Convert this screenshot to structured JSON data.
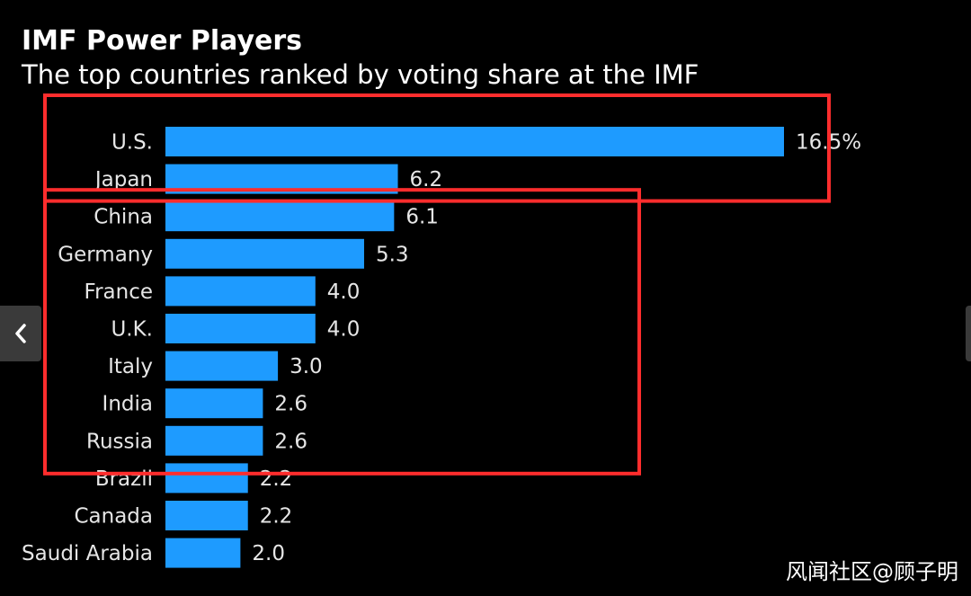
{
  "chart_data": {
    "type": "bar",
    "orientation": "horizontal",
    "title": "IMF Power Players",
    "subtitle": "The top countries ranked by voting share at the IMF",
    "categories": [
      "U.S.",
      "Japan",
      "China",
      "Germany",
      "France",
      "U.K.",
      "Italy",
      "India",
      "Russia",
      "Brazil",
      "Canada",
      "Saudi Arabia"
    ],
    "values": [
      16.5,
      6.2,
      6.1,
      5.3,
      4.0,
      4.0,
      3.0,
      2.6,
      2.6,
      2.2,
      2.2,
      2.0
    ],
    "value_labels": [
      "16.5%",
      "6.2",
      "6.1",
      "5.3",
      "4.0",
      "4.0",
      "3.0",
      "2.6",
      "2.6",
      "2.2",
      "2.2",
      "2.0"
    ],
    "xlim": [
      0,
      16.5
    ],
    "bar_color": "#1e9bff",
    "highlight_groups": [
      {
        "categories": [
          "U.S.",
          "Japan"
        ],
        "color": "#ff2d2d"
      },
      {
        "categories": [
          "China",
          "Germany",
          "France",
          "U.K.",
          "Italy",
          "India",
          "Russia"
        ],
        "color": "#ff2d2d"
      }
    ]
  },
  "ui": {
    "prev_icon": "chevron-left-icon",
    "next_icon": "chevron-right-icon"
  },
  "watermark": "风闻社区@顾子明"
}
